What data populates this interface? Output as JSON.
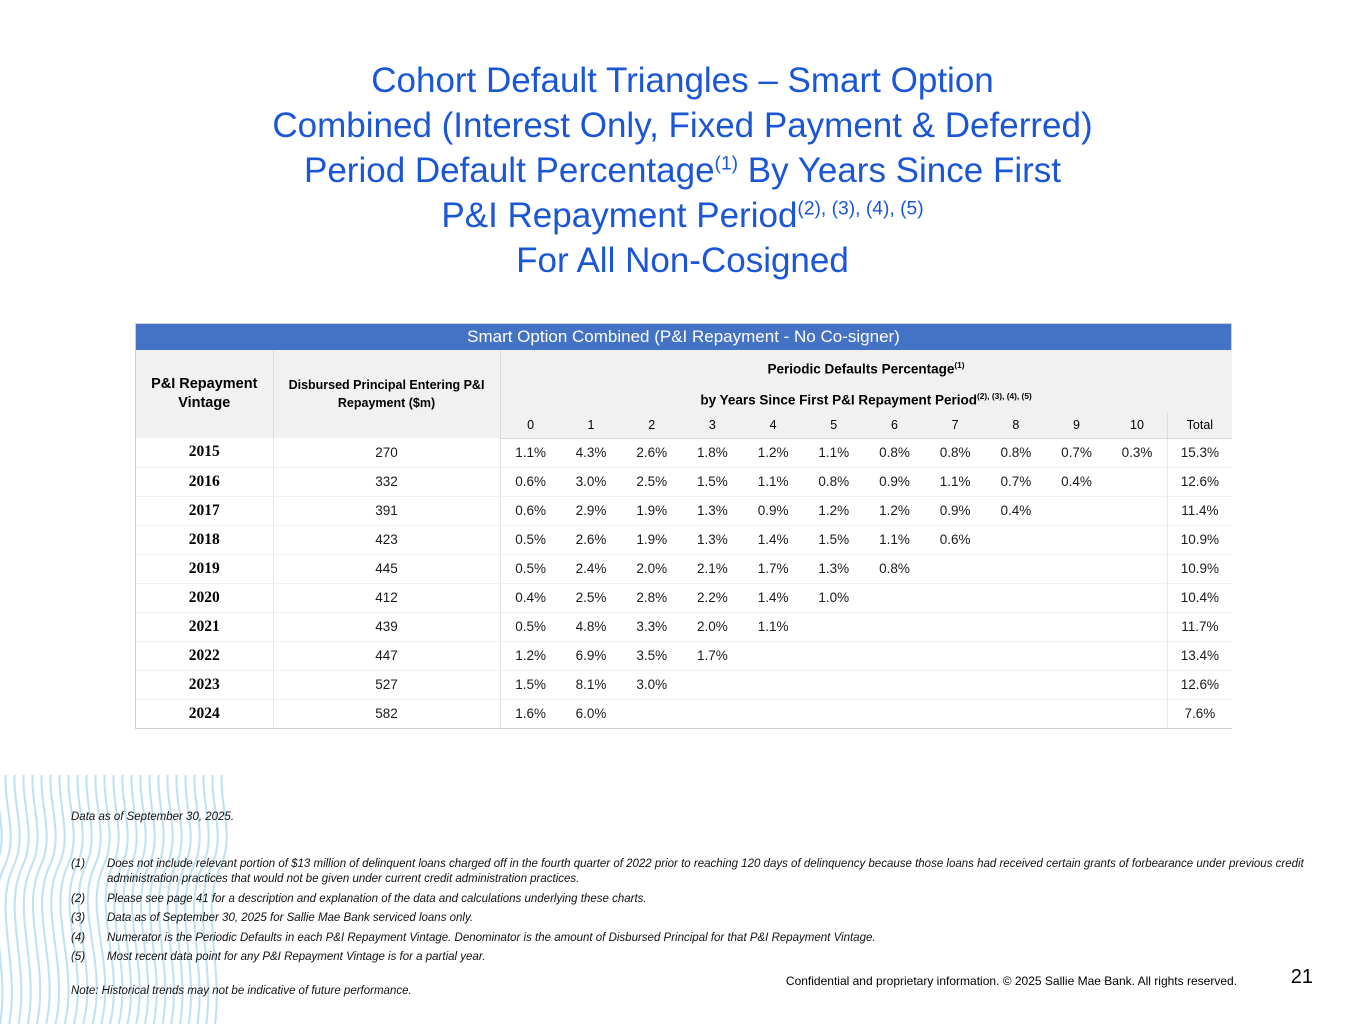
{
  "title": {
    "line1": "Cohort Default Triangles – Smart Option",
    "line2": "Combined (Interest Only, Fixed Payment & Deferred)",
    "line3a": "Period Default Percentage",
    "line3sup": "(1)",
    "line3b": " By Years Since First",
    "line4a": "P&I Repayment Period",
    "line4sup": "(2), (3), (4), (5)",
    "line5": "For All Non-Cosigned"
  },
  "table": {
    "banner": "Smart Option Combined (P&I Repayment - No Co-signer)",
    "col1_header": "P&I Repayment Vintage",
    "col2_header": "Disbursed Principal Entering P&I Repayment ($m)",
    "span_header_line1": "Periodic Defaults Percentage",
    "span_header_sup1": "(1)",
    "span_header_line2": "by Years Since First P&I Repayment Period",
    "span_header_sup2": "(2), (3), (4), (5)",
    "year_columns": [
      "0",
      "1",
      "2",
      "3",
      "4",
      "5",
      "6",
      "7",
      "8",
      "9",
      "10"
    ],
    "total_column": "Total",
    "rows": [
      {
        "vintage": "2015",
        "principal": "270",
        "values": [
          "1.1%",
          "4.3%",
          "2.6%",
          "1.8%",
          "1.2%",
          "1.1%",
          "0.8%",
          "0.8%",
          "0.8%",
          "0.7%",
          "0.3%"
        ],
        "total": "15.3%"
      },
      {
        "vintage": "2016",
        "principal": "332",
        "values": [
          "0.6%",
          "3.0%",
          "2.5%",
          "1.5%",
          "1.1%",
          "0.8%",
          "0.9%",
          "1.1%",
          "0.7%",
          "0.4%"
        ],
        "total": "12.6%"
      },
      {
        "vintage": "2017",
        "principal": "391",
        "values": [
          "0.6%",
          "2.9%",
          "1.9%",
          "1.3%",
          "0.9%",
          "1.2%",
          "1.2%",
          "0.9%",
          "0.4%"
        ],
        "total": "11.4%"
      },
      {
        "vintage": "2018",
        "principal": "423",
        "values": [
          "0.5%",
          "2.6%",
          "1.9%",
          "1.3%",
          "1.4%",
          "1.5%",
          "1.1%",
          "0.6%"
        ],
        "total": "10.9%"
      },
      {
        "vintage": "2019",
        "principal": "445",
        "values": [
          "0.5%",
          "2.4%",
          "2.0%",
          "2.1%",
          "1.7%",
          "1.3%",
          "0.8%"
        ],
        "total": "10.9%"
      },
      {
        "vintage": "2020",
        "principal": "412",
        "values": [
          "0.4%",
          "2.5%",
          "2.8%",
          "2.2%",
          "1.4%",
          "1.0%"
        ],
        "total": "10.4%"
      },
      {
        "vintage": "2021",
        "principal": "439",
        "values": [
          "0.5%",
          "4.8%",
          "3.3%",
          "2.0%",
          "1.1%"
        ],
        "total": "11.7%"
      },
      {
        "vintage": "2022",
        "principal": "447",
        "values": [
          "1.2%",
          "6.9%",
          "3.5%",
          "1.7%"
        ],
        "total": "13.4%"
      },
      {
        "vintage": "2023",
        "principal": "527",
        "values": [
          "1.5%",
          "8.1%",
          "3.0%"
        ],
        "total": "12.6%"
      },
      {
        "vintage": "2024",
        "principal": "582",
        "values": [
          "1.6%",
          "6.0%"
        ],
        "total": "7.6%"
      }
    ]
  },
  "footnotes": {
    "data_as_of": "Data as of September 30, 2025.",
    "items": [
      {
        "num": "(1)",
        "text": "Does not include relevant portion of $13 million of delinquent loans charged off in the fourth quarter of 2022 prior to reaching 120 days of delinquency because those loans had received certain grants of forbearance under previous credit administration practices that would not be given under current credit administration practices."
      },
      {
        "num": "(2)",
        "text": "Please see page 41 for a description and explanation of the data and calculations underlying these charts."
      },
      {
        "num": "(3)",
        "text": "Data as of September 30, 2025 for Sallie Mae Bank serviced loans only."
      },
      {
        "num": "(4)",
        "text": "Numerator is the Periodic Defaults in each P&I Repayment Vintage. Denominator is the amount of Disbursed Principal for that P&I Repayment Vintage."
      },
      {
        "num": "(5)",
        "text": "Most recent data point for any P&I Repayment Vintage is for a partial year."
      }
    ],
    "note": "Note: Historical trends may not be indicative of future performance."
  },
  "footer": {
    "confidential": "Confidential and proprietary information. © 2025 Sallie Mae Bank. All rights reserved.",
    "page_number": "21"
  },
  "colors": {
    "title_blue": "#1a56d6",
    "banner_blue": "#4472c4",
    "header_gray": "#f1f1f1",
    "wave_blue": "#c0e3f2"
  }
}
